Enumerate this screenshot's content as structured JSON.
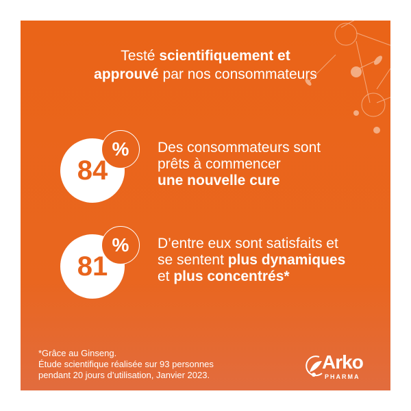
{
  "headline": {
    "line1_regular": "Testé ",
    "line1_bold": "scientifiquement et",
    "line2_bold": "approuvé",
    "line2_regular": " par nos consommateurs"
  },
  "stats": [
    {
      "value": "84",
      "unit": "%",
      "line1": "Des consommateurs sont",
      "line2": "prêts à commencer",
      "line3_bold": "une nouvelle cure"
    },
    {
      "value": "81",
      "unit": "%",
      "line1": "D’entre eux sont satisfaits et",
      "line2_regular": "se sentent ",
      "line2_bold": "plus dynamiques",
      "line3_regular": "et ",
      "line3_bold": "plus concentrés*"
    }
  ],
  "footnote": {
    "line1": "*Grâce au Ginseng.",
    "line2": "Étude scientifique réalisée sur 93 personnes",
    "line3": "pendant 20 jours d’utilisation, Janvier 2023."
  },
  "logo": {
    "name": "Arko",
    "sub": "PHARMA"
  },
  "colors": {
    "brand_orange": "#e8641c",
    "white": "#ffffff"
  }
}
